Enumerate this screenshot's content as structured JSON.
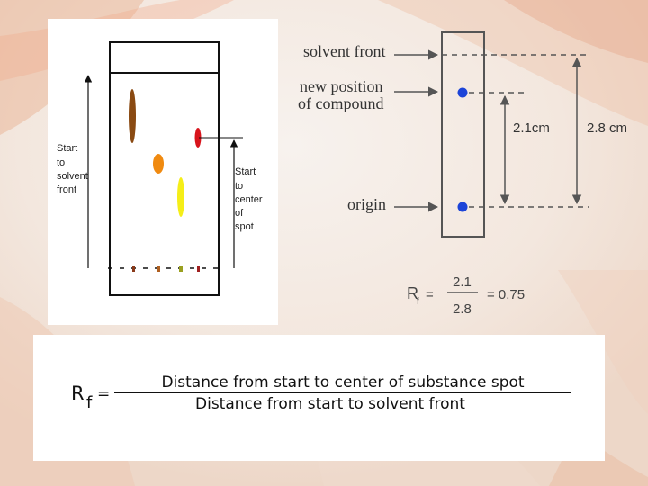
{
  "colors": {
    "background_warm": "#f0c8a8",
    "background_light": "#f6f1ec",
    "spot_brown": "#8a4a12",
    "spot_orange": "#f08a10",
    "spot_yellow": "#f5ee18",
    "spot_red": "#d8141c",
    "spot_blue": "#1c44d8"
  },
  "left_diagram": {
    "label_start_to_solvent_front": [
      "Start",
      "to",
      "solvent",
      "front"
    ],
    "label_start_to_center_of_spot": [
      "Start",
      "to",
      "center",
      "of",
      "spot"
    ]
  },
  "right_diagram": {
    "labels": {
      "solvent_front": "solvent front",
      "new_position_line1": "new position",
      "new_position_line2": "of compound",
      "origin": "origin"
    },
    "measurements": {
      "compound_distance": "2.1cm",
      "solvent_distance": "2.8 cm"
    },
    "calculation": {
      "symbol": "R",
      "subscript": "f",
      "equals": "=",
      "numerator": "2.1",
      "denominator": "2.8",
      "result": "= 0.75"
    }
  },
  "formula": {
    "symbol": "R",
    "subscript": "f",
    "equals": "=",
    "numerator": "Distance from start to center of substance spot",
    "denominator": "Distance from start to solvent front"
  }
}
